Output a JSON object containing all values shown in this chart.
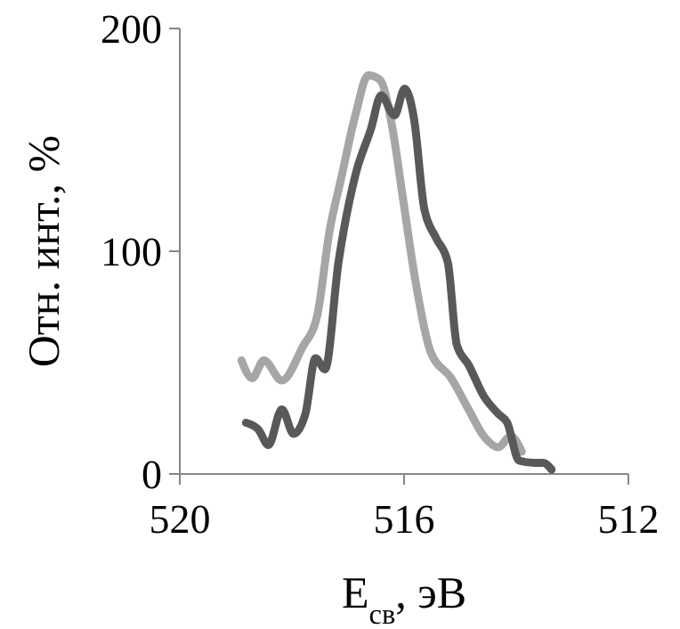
{
  "chart_data": {
    "type": "line",
    "xlabel": "E$_{св}$, эВ",
    "ylabel": "Отн. инт., %",
    "xlim": [
      520,
      512
    ],
    "xticks": [
      520,
      516,
      512
    ],
    "ylim": [
      0,
      200
    ],
    "yticks": [
      0,
      100,
      200
    ],
    "grid": false,
    "marker": "none",
    "line_style": "solid",
    "series": [
      {
        "color": "#a6a6a6",
        "x": [
          518.9,
          518.71,
          518.5,
          518.18,
          517.81,
          517.55,
          517.33,
          517.12,
          516.86,
          516.64,
          516.43,
          516.22,
          516.01,
          515.8,
          515.53,
          515.16,
          514.85,
          514.58,
          514.32,
          514.1,
          513.9
        ],
        "values": [
          51,
          43,
          51,
          42,
          57,
          71,
          109,
          133,
          162,
          179,
          177,
          157,
          122,
          87,
          55,
          43,
          29,
          17,
          12,
          17,
          10
        ]
      },
      {
        "color": "#595959",
        "x": [
          518.82,
          518.6,
          518.42,
          518.18,
          517.97,
          517.76,
          517.58,
          517.41,
          517.17,
          516.86,
          516.59,
          516.41,
          516.17,
          515.99,
          515.82,
          515.64,
          515.43,
          515.22,
          515.06,
          514.85,
          514.58,
          514.32,
          514.16,
          513.95,
          513.68,
          513.52,
          513.37
        ],
        "values": [
          23,
          20,
          13,
          29,
          18,
          27,
          52,
          47,
          95,
          135,
          155,
          170,
          161,
          173,
          159,
          119,
          106,
          95,
          58,
          49,
          35,
          27,
          23,
          6,
          5,
          5,
          2
        ]
      }
    ]
  }
}
